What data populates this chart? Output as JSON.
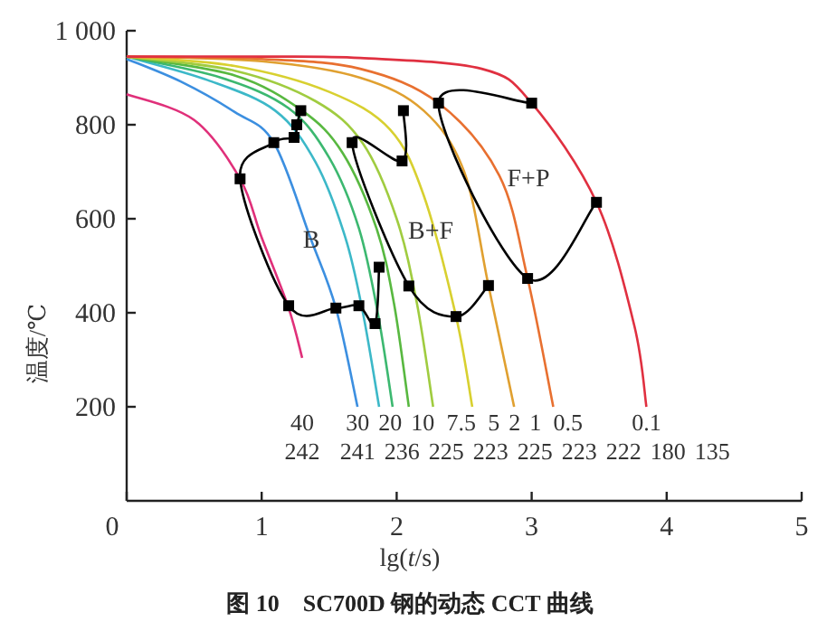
{
  "chart_data": {
    "type": "line",
    "title": "**图 10　SC700D 钢的动态 CCT 曲线**",
    "xlabel": "lg(*t*/s)",
    "ylabel": "温度/℃",
    "xlim": [
      0,
      5
    ],
    "ylim": [
      0,
      1000
    ],
    "xticks": [
      0,
      1,
      2,
      3,
      4,
      5
    ],
    "yticks": [
      200,
      400,
      600,
      800,
      {
        "value": 1000,
        "label": "1 000"
      }
    ],
    "grid": false,
    "series": [
      {
        "name": "40",
        "color": "#e0307a",
        "x": [
          0,
          0.5,
          0.84,
          1.0,
          1.2,
          1.3
        ],
        "values": [
          865,
          810,
          685,
          560,
          410,
          304
        ]
      },
      {
        "name": "30",
        "color": "#3c8fe0",
        "x": [
          0,
          0.4,
          0.8,
          1.09,
          1.36,
          1.55,
          1.71
        ],
        "values": [
          940,
          892,
          827,
          762,
          560,
          410,
          200
        ]
      },
      {
        "name": "20",
        "color": "#3cb8c8",
        "x": [
          0,
          0.6,
          1.1,
          1.4,
          1.62,
          1.75,
          1.87
        ],
        "values": [
          945,
          895,
          830,
          720,
          560,
          400,
          200
        ]
      },
      {
        "name": "10",
        "color": "#3cb870",
        "x": [
          0,
          0.7,
          1.2,
          1.5,
          1.72,
          1.86,
          1.97
        ],
        "values": [
          945,
          900,
          835,
          730,
          580,
          400,
          200
        ]
      },
      {
        "name": "7.5",
        "color": "#58b840",
        "x": [
          0,
          0.8,
          1.3,
          1.6,
          1.85,
          1.98,
          2.09
        ],
        "values": [
          945,
          905,
          830,
          740,
          580,
          420,
          200
        ]
      },
      {
        "name": "5",
        "color": "#a0cc40",
        "x": [
          0,
          0.8,
          1.4,
          1.75,
          2.0,
          2.15,
          2.27
        ],
        "values": [
          945,
          915,
          850,
          760,
          600,
          420,
          200
        ]
      },
      {
        "name": "2",
        "color": "#d8d030",
        "x": [
          0,
          0.8,
          1.5,
          1.95,
          2.2,
          2.44,
          2.56
        ],
        "values": [
          945,
          925,
          870,
          790,
          650,
          392,
          200
        ]
      },
      {
        "name": "1",
        "color": "#e0a030",
        "x": [
          0,
          1.0,
          1.73,
          2.2,
          2.5,
          2.68,
          2.87
        ],
        "values": [
          945,
          935,
          900,
          830,
          700,
          458,
          200
        ]
      },
      {
        "name": "0.5",
        "color": "#e87030",
        "x": [
          0,
          1.0,
          1.73,
          2.31,
          2.76,
          2.97,
          3.16
        ],
        "values": [
          945,
          940,
          919,
          846,
          692,
          473,
          200
        ]
      },
      {
        "name": "0.1",
        "color": "#e03040",
        "x": [
          0,
          1.0,
          1.73,
          2.63,
          3.0,
          3.48,
          3.76,
          3.85
        ],
        "values": [
          945,
          945,
          942,
          919,
          846,
          635,
          373,
          200
        ]
      },
      {
        "color": "#000000",
        "marker": "square",
        "x": [
          1.29,
          1.26,
          1.24,
          1.09,
          0.84,
          1.2,
          1.55,
          1.72,
          1.84,
          1.87
        ],
        "values": [
          830,
          800,
          773,
          762,
          685,
          415,
          410,
          415,
          377,
          497
        ]
      },
      {
        "color": "#000000",
        "marker": "square",
        "x": [
          2.05,
          2.04,
          1.67,
          2.09,
          2.44,
          2.68
        ],
        "values": [
          830,
          723,
          762,
          457,
          392,
          458
        ]
      },
      {
        "color": "#000000",
        "marker": "square",
        "x": [
          3.0,
          2.31,
          2.97,
          3.48
        ],
        "values": [
          846,
          846,
          473,
          635
        ]
      }
    ],
    "annotations": [
      "B",
      "B+F",
      "F+P",
      "242",
      "241",
      "236",
      "225",
      "223",
      "225",
      "223",
      "222",
      "180",
      "135"
    ]
  }
}
